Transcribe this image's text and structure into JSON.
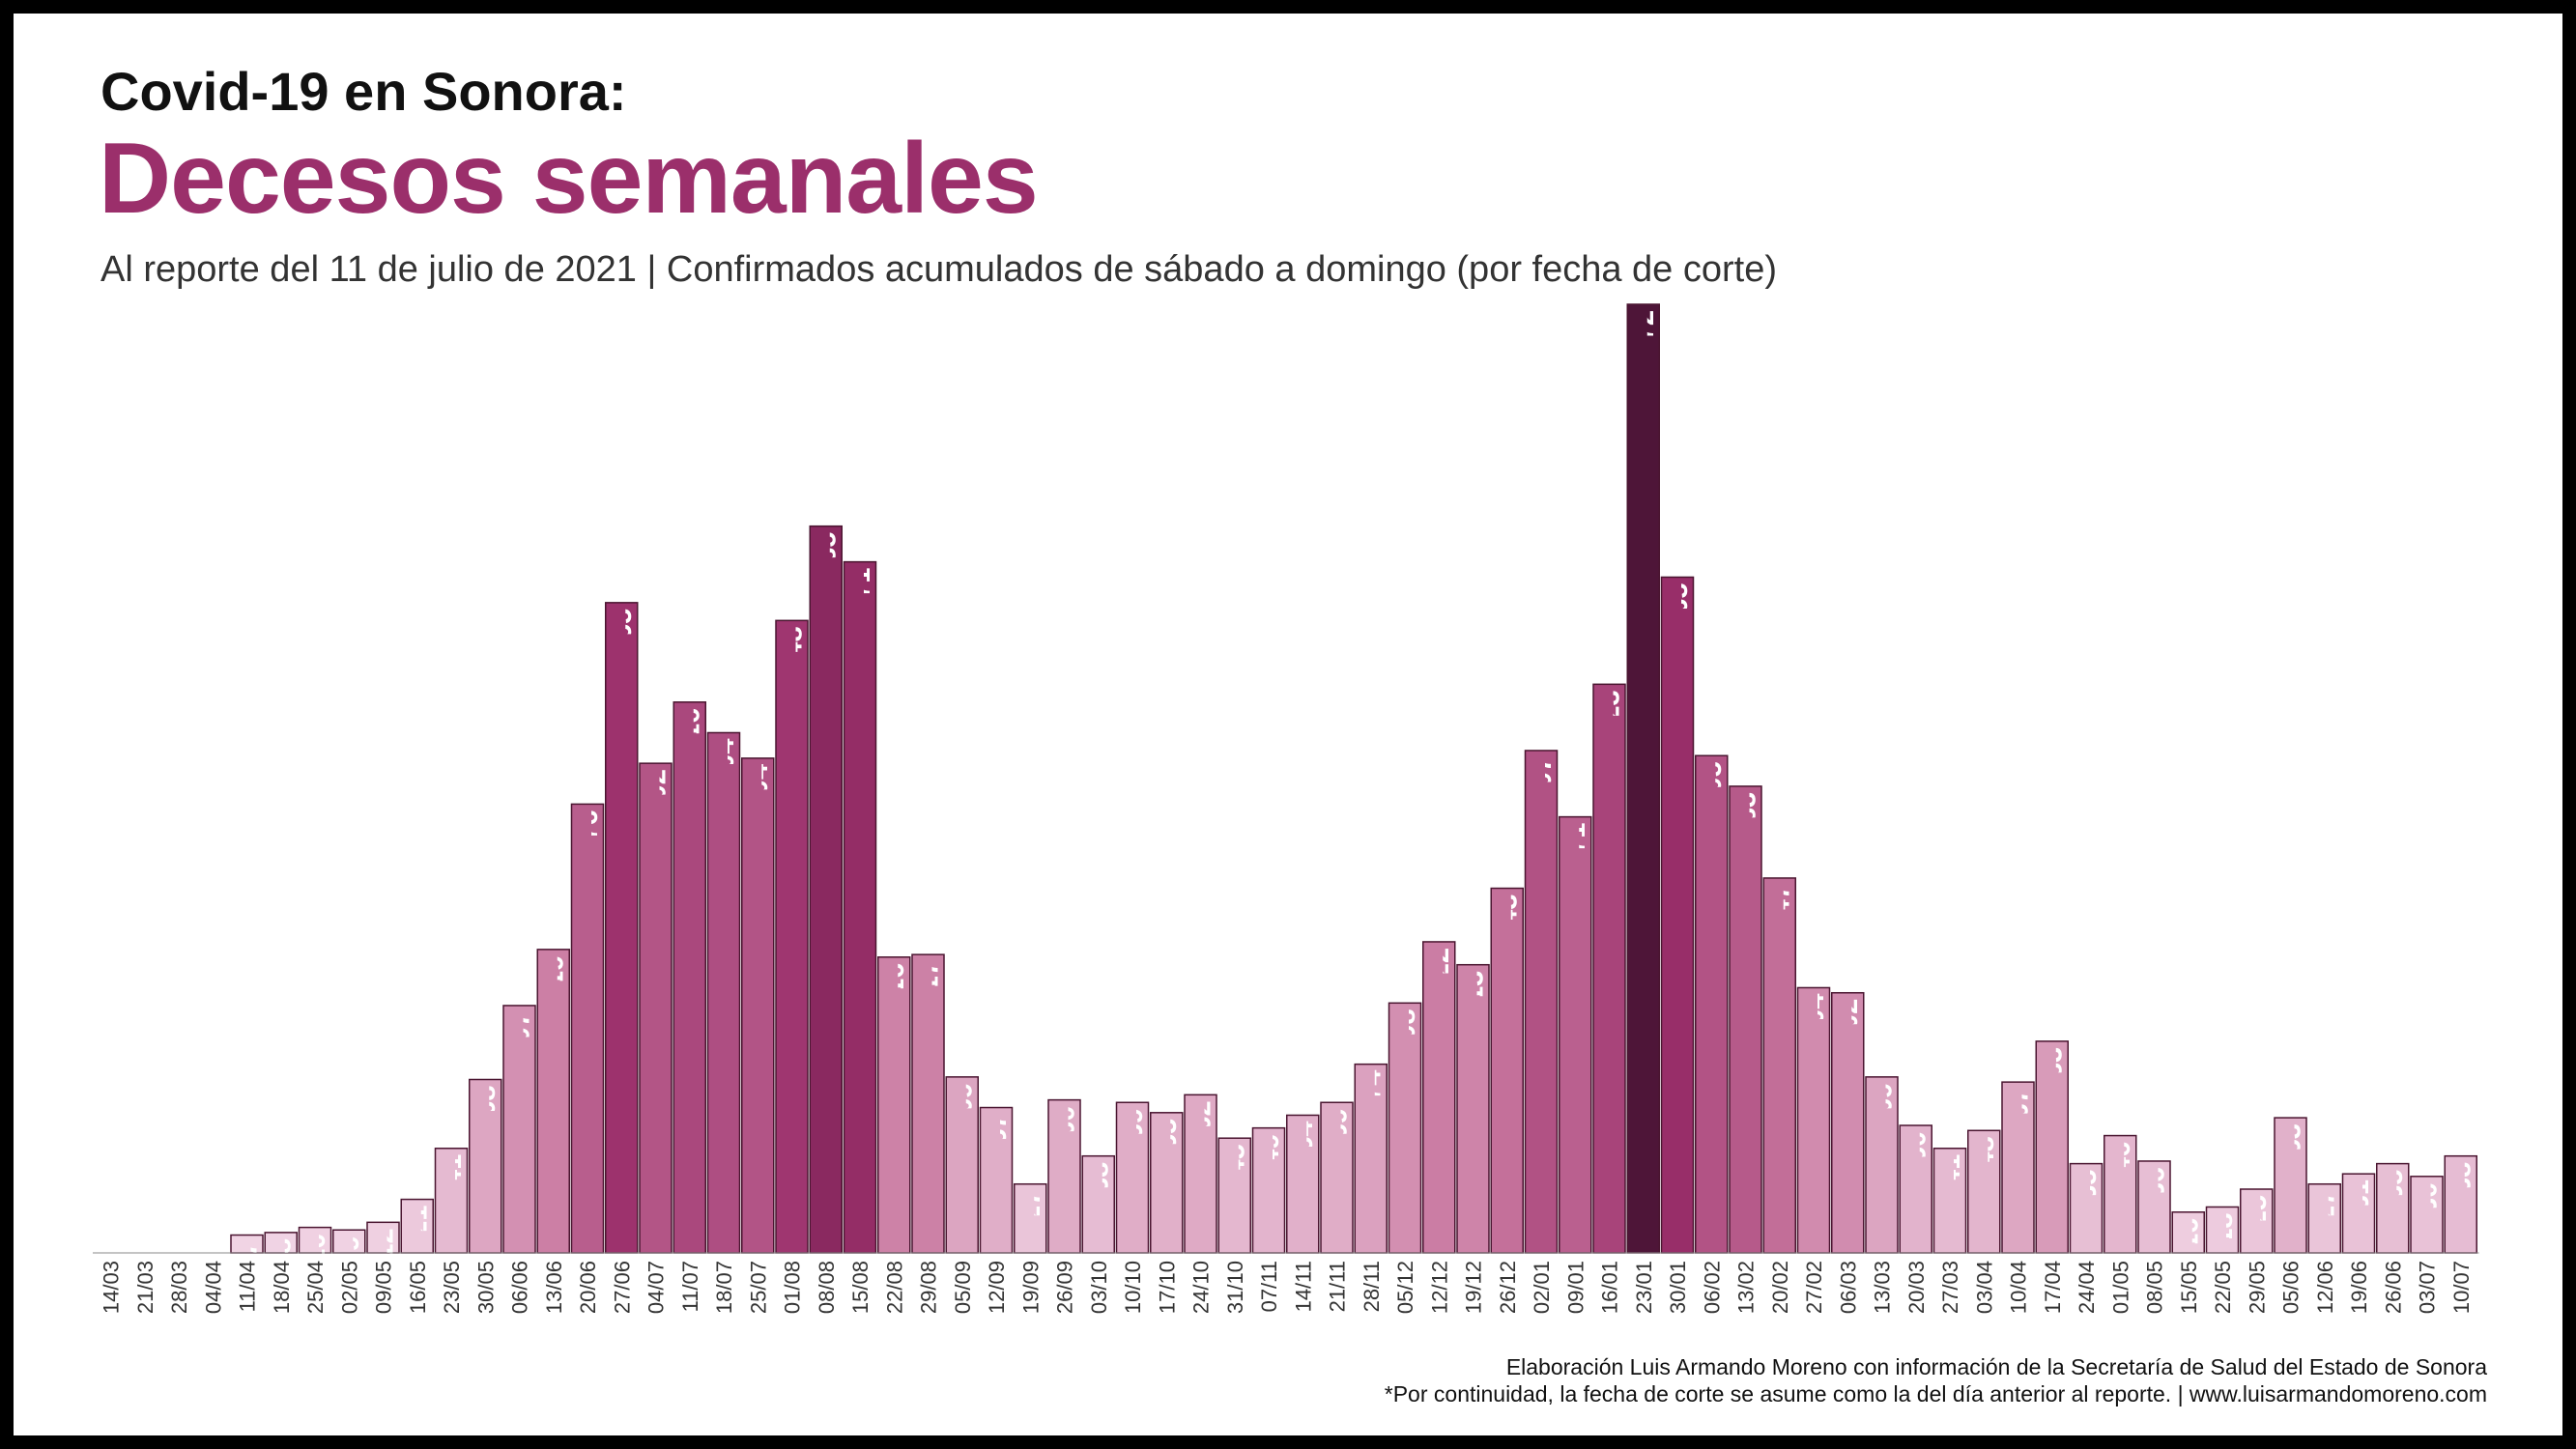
{
  "title": "Covid-19 en Sonora:",
  "subtitle_main": "Decesos semanales",
  "description": "Al reporte del 11 de julio de 2021 | Confirmados acumulados de sábado a domingo (por fecha de corte)",
  "footer": {
    "line1": "Elaboración Luis Armando Moreno con información de la Secretaría de Salud del Estado de Sonora",
    "line2": "*Por continuidad, la fecha de corte se asume como la del día anterior al reporte. | www.luisarmandomoreno.com"
  },
  "colors": {
    "scale_low": "#f3d9e8",
    "scale_mid": "#c8779f",
    "scale_high": "#9b2f6b",
    "scale_max": "#4e1538",
    "bar_stroke": "#4a1530",
    "title_accent": "#9b2f6b"
  },
  "chart_data": {
    "type": "bar",
    "title": "Decesos semanales",
    "xlabel": "",
    "ylabel": "",
    "ylim": [
      0,
      372
    ],
    "grid": false,
    "legend": "none",
    "categories": [
      "14/03",
      "21/03",
      "28/03",
      "04/04",
      "11/04",
      "18/04",
      "25/04",
      "02/05",
      "09/05",
      "16/05",
      "23/05",
      "30/05",
      "06/06",
      "13/06",
      "20/06",
      "27/06",
      "04/07",
      "11/07",
      "18/07",
      "25/07",
      "01/08",
      "08/08",
      "15/08",
      "22/08",
      "29/08",
      "05/09",
      "12/09",
      "19/09",
      "26/09",
      "03/10",
      "10/10",
      "17/10",
      "24/10",
      "31/10",
      "07/11",
      "14/11",
      "21/11",
      "28/11",
      "05/12",
      "12/12",
      "19/12",
      "26/12",
      "02/01",
      "09/01",
      "16/01",
      "23/01",
      "30/01",
      "06/02",
      "13/02",
      "20/02",
      "27/02",
      "06/03",
      "13/03",
      "20/03",
      "27/03",
      "03/04",
      "10/04",
      "17/04",
      "24/04",
      "01/05",
      "08/05",
      "15/05",
      "22/05",
      "29/05",
      "05/06",
      "12/06",
      "19/06",
      "26/06",
      "03/07",
      "10/07"
    ],
    "values": [
      0,
      0,
      0,
      0,
      7,
      8,
      10,
      9,
      12,
      21,
      41,
      68,
      97,
      119,
      176,
      255,
      192,
      216,
      204,
      194,
      248,
      285,
      271,
      116,
      117,
      69,
      57,
      27,
      60,
      38,
      59,
      55,
      62,
      45,
      49,
      54,
      59,
      74,
      98,
      122,
      113,
      143,
      197,
      171,
      223,
      372,
      265,
      195,
      183,
      147,
      104,
      102,
      69,
      50,
      41,
      48,
      67,
      83,
      35,
      46,
      36,
      16,
      18,
      25,
      53,
      27,
      31,
      35,
      30,
      38
    ]
  }
}
